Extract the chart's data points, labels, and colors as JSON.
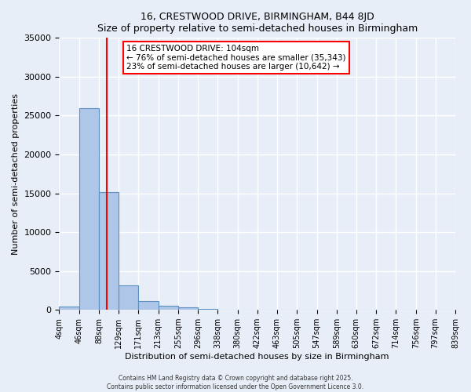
{
  "title1": "16, CRESTWOOD DRIVE, BIRMINGHAM, B44 8JD",
  "title2": "Size of property relative to semi-detached houses in Birmingham",
  "xlabel": "Distribution of semi-detached houses by size in Birmingham",
  "ylabel": "Number of semi-detached properties",
  "bin_edges": [
    4,
    46,
    88,
    129,
    171,
    213,
    255,
    296,
    338,
    380,
    422,
    463,
    505,
    547,
    589,
    630,
    672,
    714,
    756,
    797,
    839
  ],
  "bar_heights": [
    400,
    26000,
    15200,
    3100,
    1100,
    500,
    300,
    80,
    40,
    20,
    15,
    10,
    8,
    5,
    4,
    3,
    2,
    2,
    1,
    1
  ],
  "bar_color": "#aec6e8",
  "bar_edge_color": "#5a8fc0",
  "property_line_x": 104,
  "property_line_color": "red",
  "annotation_text": "16 CRESTWOOD DRIVE: 104sqm\n← 76% of semi-detached houses are smaller (35,343)\n23% of semi-detached houses are larger (10,642) →",
  "annotation_box_color": "white",
  "annotation_box_edge_color": "red",
  "ylim": [
    0,
    35000
  ],
  "yticks": [
    0,
    5000,
    10000,
    15000,
    20000,
    25000,
    30000,
    35000
  ],
  "background_color": "#e8eef8",
  "plot_bg_color": "#dde6f5",
  "grid_color": "white",
  "footer_line1": "Contains HM Land Registry data © Crown copyright and database right 2025.",
  "footer_line2": "Contains public sector information licensed under the Open Government Licence 3.0."
}
